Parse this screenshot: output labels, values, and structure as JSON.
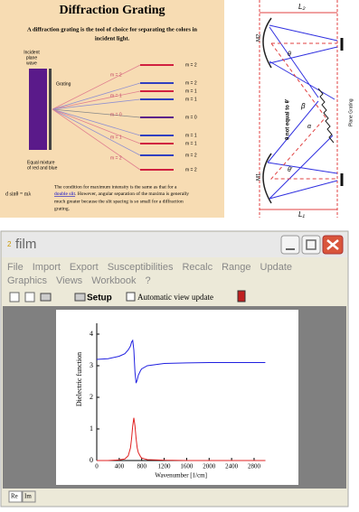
{
  "grating_panel": {
    "title": "Diffraction Grating",
    "subtitle_lines": [
      "A diffraction grating is the tool of choice for separating the colors in",
      "incident light."
    ],
    "incident_label_lines": [
      "Incident",
      "plane",
      "wave"
    ],
    "grating_label": "Grating",
    "mixture_label_lines": [
      "Equal mixture",
      "of red and blue"
    ],
    "order_labels_right": [
      "m = 2",
      "m = 2",
      "m = 1",
      "m = 1",
      "m = 0",
      "m = 1",
      "m = 1",
      "m = 2",
      "m = 2"
    ],
    "order_labels_middle": [
      "m = 2",
      "m = 1",
      "m = 0",
      "m = 1",
      "m = 2"
    ],
    "formula": "d sinθ = mλ",
    "text_line_1": "The condition for maximum intensity is the same as that for a",
    "link": "double slit",
    "text_line_2_rest": ". However, angular separation of the maxima is generally",
    "text_line_3": "much greater because the slit spacing is so small for a diffraction",
    "text_line_4": "grating."
  },
  "mirror_diagram": {
    "l2": "L₂",
    "l1": "L₁",
    "m2": "M2",
    "m1": "M1",
    "theta_note": "θ not equal to θ'",
    "beta": "β",
    "alpha": "α",
    "theta": "θ",
    "theta_prime": "θ'",
    "grating": "Plane Grating"
  },
  "window": {
    "title": "film",
    "menu_row_1": [
      "File",
      "Import",
      "Export",
      "Susceptibilities",
      "Recalc",
      "Range",
      "Update"
    ],
    "menu_row_2": [
      "Graphics",
      "Views",
      "Workbook",
      "?"
    ],
    "setup": "Setup",
    "checkbox": "Automatic view update",
    "tabs": [
      "Re",
      "Im"
    ]
  },
  "chart_data": {
    "type": "line",
    "x_label": "Wavenumber [1/cm]",
    "y_label": "Dielectric function",
    "x": [
      0,
      200,
      400,
      500,
      560,
      600,
      620,
      640,
      660,
      680,
      700,
      720,
      740,
      780,
      800,
      900,
      1200,
      1600,
      2000,
      2800,
      3000
    ],
    "series": [
      {
        "color": "#2020e0",
        "values": [
          3.2,
          3.22,
          3.3,
          3.38,
          3.5,
          3.62,
          3.75,
          3.8,
          3.5,
          2.8,
          2.45,
          2.55,
          2.7,
          2.85,
          2.9,
          3.0,
          3.07,
          3.09,
          3.1,
          3.1,
          3.1
        ]
      },
      {
        "color": "#e02020",
        "values": [
          0,
          0,
          0.02,
          0.05,
          0.15,
          0.4,
          0.7,
          1.1,
          1.35,
          1.1,
          0.7,
          0.4,
          0.25,
          0.12,
          0.08,
          0.03,
          0.01,
          0,
          0,
          0,
          0
        ]
      }
    ],
    "xlim": [
      0,
      3000
    ],
    "ylim": [
      0,
      4
    ],
    "xticks": [
      0,
      400,
      800,
      1200,
      1600,
      2000,
      2400,
      2800
    ],
    "yticks": [
      0,
      1,
      2,
      3,
      4
    ]
  }
}
